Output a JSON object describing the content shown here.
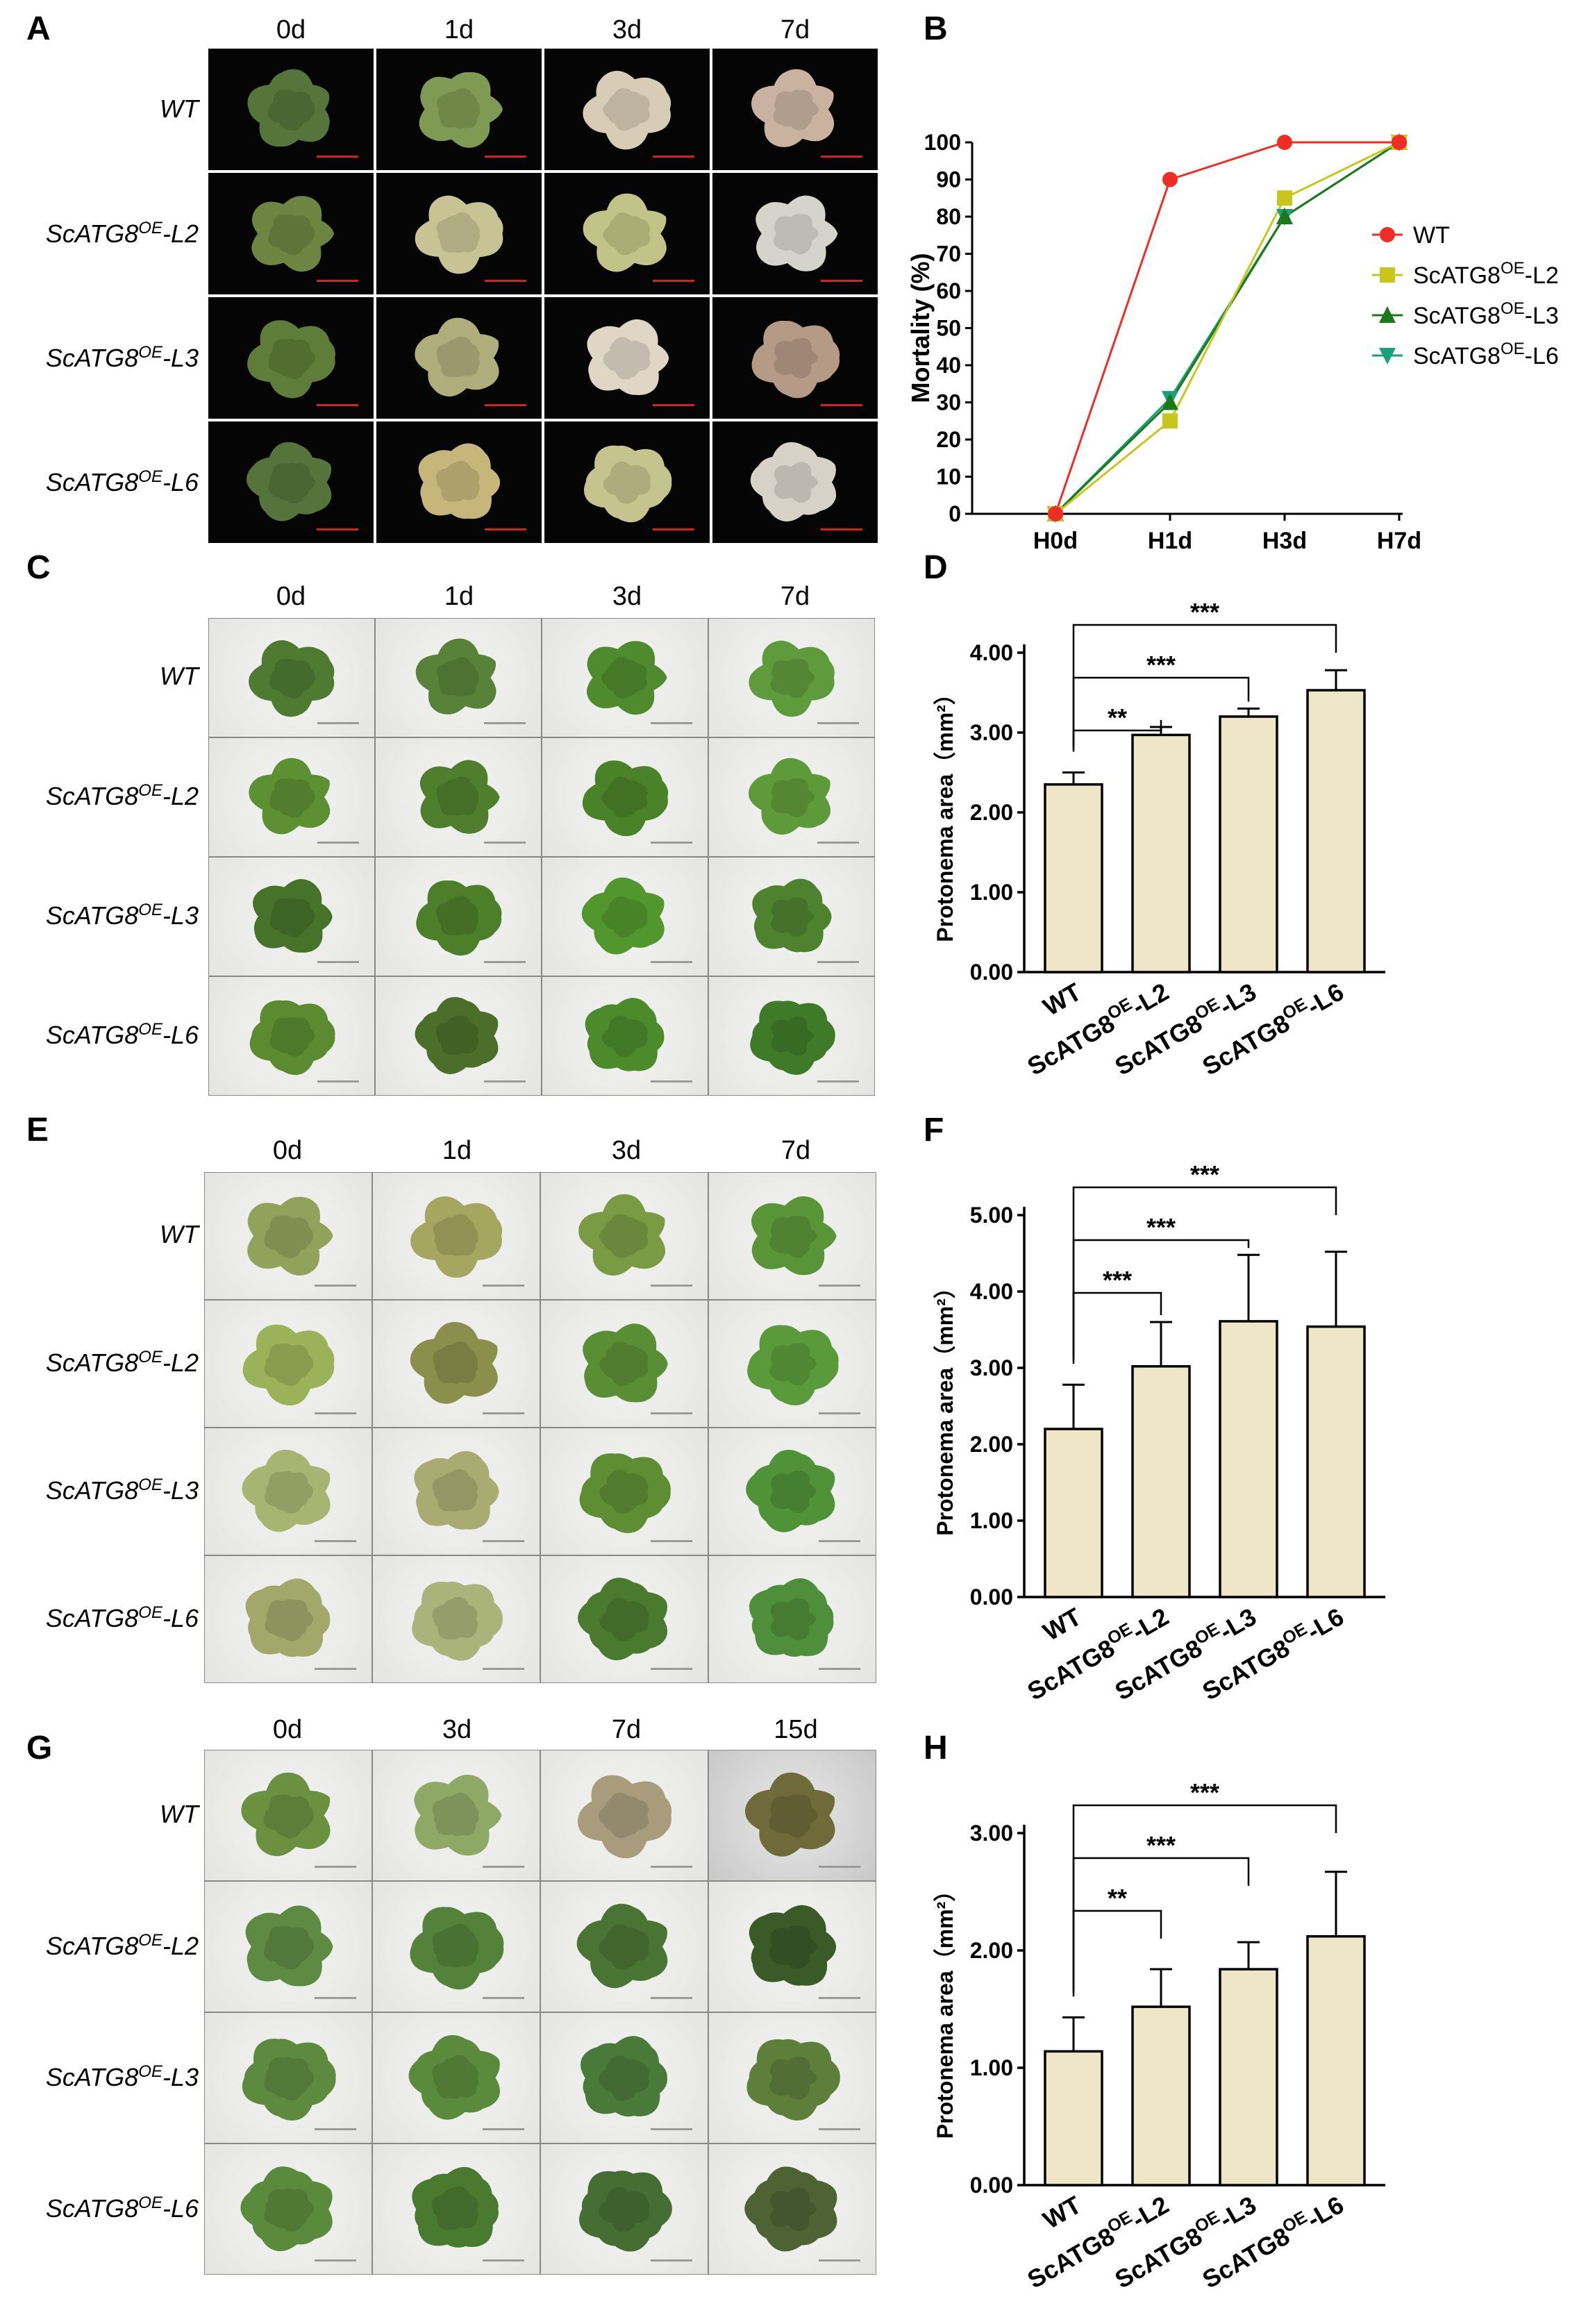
{
  "panels": {
    "A": {
      "letter": "A",
      "columns": [
        "0d",
        "1d",
        "3d",
        "7d"
      ]
    },
    "B": {
      "letter": "B"
    },
    "C": {
      "letter": "C",
      "columns": [
        "0d",
        "1d",
        "3d",
        "7d"
      ]
    },
    "D": {
      "letter": "D"
    },
    "E": {
      "letter": "E",
      "columns": [
        "0d",
        "1d",
        "3d",
        "7d"
      ]
    },
    "F": {
      "letter": "F"
    },
    "G": {
      "letter": "G",
      "columns": [
        "0d",
        "3d",
        "7d",
        "15d"
      ]
    },
    "H": {
      "letter": "H"
    }
  },
  "row_labels": [
    {
      "base": "WT",
      "sup": "",
      "suffix": ""
    },
    {
      "base": "ScATG8",
      "sup": "OE",
      "suffix": "-L2"
    },
    {
      "base": "ScATG8",
      "sup": "OE",
      "suffix": "-L3"
    },
    {
      "base": "ScATG8",
      "sup": "OE",
      "suffix": "-L6"
    }
  ],
  "photo_colors": {
    "A": [
      [
        "#55753a",
        "#7f9a53",
        "#d8ccb6",
        "#c9b3a0"
      ],
      [
        "#6c8642",
        "#c8c394",
        "#c1c486",
        "#d5d4cc"
      ],
      [
        "#5f7d38",
        "#b0ad7c",
        "#dfd6c6",
        "#b59a86"
      ],
      [
        "#55733a",
        "#c6b67a",
        "#c6c48e",
        "#d6d2c8"
      ]
    ],
    "C": [
      [
        "#4e7a32",
        "#58823a",
        "#4f8a2e",
        "#5f9a3c"
      ],
      [
        "#5d8f33",
        "#4f7f2c",
        "#4a822a",
        "#5f9a3a"
      ],
      [
        "#46722a",
        "#4d7e2a",
        "#52962e",
        "#4e822e"
      ],
      [
        "#5b8a30",
        "#4b6e2a",
        "#4c8a2c",
        "#3f7a28"
      ]
    ],
    "E": [
      [
        "#93a25a",
        "#a5a660",
        "#7a9a44",
        "#5a9438"
      ],
      [
        "#9bb15a",
        "#8a8f4c",
        "#5a8e34",
        "#5a9a3a"
      ],
      [
        "#a8b472",
        "#a9ab72",
        "#5e8d34",
        "#4f9238"
      ],
      [
        "#a2a86a",
        "#aab47a",
        "#4a7a2e",
        "#4f8e3a"
      ]
    ],
    "G": [
      [
        "#6a9040",
        "#8ea866",
        "#a89c7c",
        "#6e6a3a"
      ],
      [
        "#5e8a44",
        "#54823a",
        "#4a7434",
        "#3a5a28"
      ],
      [
        "#5e8a40",
        "#5a8a3c",
        "#4a7a3a",
        "#5e7e3c"
      ],
      [
        "#5a8a3c",
        "#4a7a30",
        "#466e34",
        "#4e6234"
      ]
    ]
  },
  "scalebar_colors": {
    "A": "#d62020",
    "C": "#9a9a9a",
    "E": "#9a9a9a",
    "G": "#9a9a9a"
  },
  "line_chart": {
    "chart_data": {
      "type": "line",
      "x": [
        "H0d",
        "H1d",
        "H3d",
        "H7d"
      ],
      "ylabel": "Mortality (%)",
      "ylim": [
        0,
        100
      ],
      "yticks": [
        "0",
        "10",
        "20",
        "30",
        "40",
        "50",
        "60",
        "70",
        "80",
        "90",
        "100"
      ],
      "series": [
        {
          "name": "WT",
          "values": [
            0,
            90,
            100,
            100
          ],
          "color": "#ee2e24",
          "marker": "circle"
        },
        {
          "name": "ScATG8",
          "sup": "OE",
          "suffix": "-L2",
          "values": [
            0,
            25,
            85,
            100
          ],
          "color": "#c8c61a",
          "marker": "square"
        },
        {
          "name": "ScATG8",
          "sup": "OE",
          "suffix": "-L3",
          "values": [
            0,
            30,
            80,
            100
          ],
          "color": "#1a7a1a",
          "marker": "triangle-up"
        },
        {
          "name": "ScATG8",
          "sup": "OE",
          "suffix": "-L6",
          "values": [
            0,
            31,
            80,
            100
          ],
          "color": "#1aa07a",
          "marker": "triangle-down"
        }
      ],
      "legend_position": "right"
    }
  },
  "bar_charts": {
    "D": {
      "chart_data": {
        "type": "bar",
        "categories": [
          "WT",
          "ScATG8OE-L2",
          "ScATG8OE-L3",
          "ScATG8OE-L6"
        ],
        "values": [
          2.35,
          2.97,
          3.2,
          3.53
        ],
        "errors": [
          0.15,
          0.1,
          0.1,
          0.25
        ],
        "ylabel": "Protonema area（mm²）",
        "ylim": [
          0,
          4
        ],
        "yticks": [
          "0.00",
          "1.00",
          "2.00",
          "3.00",
          "4.00"
        ],
        "significance": [
          {
            "from": 0,
            "to": 1,
            "label": "**"
          },
          {
            "from": 0,
            "to": 2,
            "label": "***"
          },
          {
            "from": 0,
            "to": 3,
            "label": "***"
          }
        ],
        "bar_color": "#efe6c8"
      }
    },
    "F": {
      "chart_data": {
        "type": "bar",
        "categories": [
          "WT",
          "ScATG8OE-L2",
          "ScATG8OE-L3",
          "ScATG8OE-L6"
        ],
        "values": [
          2.2,
          3.02,
          3.61,
          3.54
        ],
        "errors": [
          0.58,
          0.58,
          0.87,
          0.98
        ],
        "ylabel": "Protonema area（mm²）",
        "ylim": [
          0,
          5
        ],
        "yticks": [
          "0.00",
          "1.00",
          "2.00",
          "3.00",
          "4.00",
          "5.00"
        ],
        "significance": [
          {
            "from": 0,
            "to": 1,
            "label": "***"
          },
          {
            "from": 0,
            "to": 2,
            "label": "***"
          },
          {
            "from": 0,
            "to": 3,
            "label": "***"
          }
        ],
        "bar_color": "#efe6c8"
      }
    },
    "H": {
      "chart_data": {
        "type": "bar",
        "categories": [
          "WT",
          "ScATG8OE-L2",
          "ScATG8OE-L3",
          "ScATG8OE-L6"
        ],
        "values": [
          1.14,
          1.52,
          1.84,
          2.12
        ],
        "errors": [
          0.29,
          0.32,
          0.23,
          0.55
        ],
        "ylabel": "Protonema area（mm²）",
        "ylim": [
          0,
          3
        ],
        "yticks": [
          "0.00",
          "1.00",
          "2.00",
          "3.00"
        ],
        "significance": [
          {
            "from": 0,
            "to": 1,
            "label": "**"
          },
          {
            "from": 0,
            "to": 2,
            "label": "***"
          },
          {
            "from": 0,
            "to": 3,
            "label": "***"
          }
        ],
        "bar_color": "#efe6c8"
      }
    }
  }
}
